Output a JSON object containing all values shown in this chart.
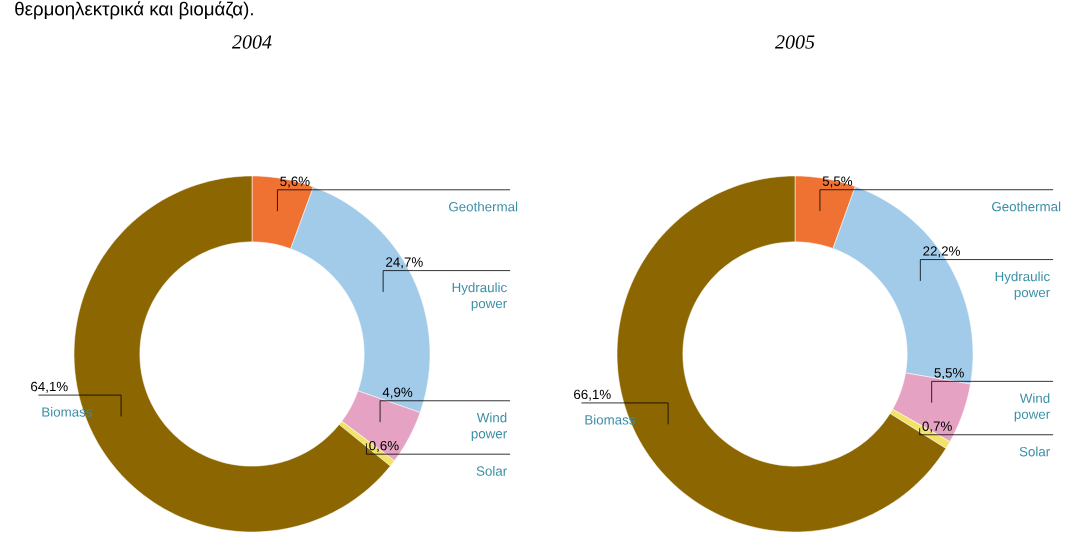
{
  "chart_data": [
    {
      "type": "donut",
      "title": "2004",
      "categories": [
        "Geothermal",
        "Hydraulic power",
        "Wind power",
        "Solar",
        "Biomass"
      ],
      "values": [
        5.6,
        24.7,
        4.9,
        0.6,
        64.1
      ],
      "value_labels": [
        "5,6%",
        "24,7%",
        "4,9%",
        "0,6%",
        "64,1%"
      ],
      "colors": [
        "#f07232",
        "#a2cbea",
        "#e6a2c2",
        "#f2e266",
        "#8c6600"
      ],
      "annotations": [
        "θερμοηλεκτρικά και βιομάζα)."
      ]
    },
    {
      "type": "donut",
      "title": "2005",
      "categories": [
        "Geothermal",
        "Hydraulic power",
        "Wind power",
        "Solar",
        "Biomass"
      ],
      "values": [
        5.5,
        22.2,
        5.5,
        0.7,
        66.1
      ],
      "value_labels": [
        "5,5%",
        "22,2%",
        "5,5%",
        "0,7%",
        "66,1%"
      ],
      "colors": [
        "#f07232",
        "#a2cbea",
        "#e6a2c2",
        "#f2e266",
        "#8c6600"
      ]
    }
  ]
}
